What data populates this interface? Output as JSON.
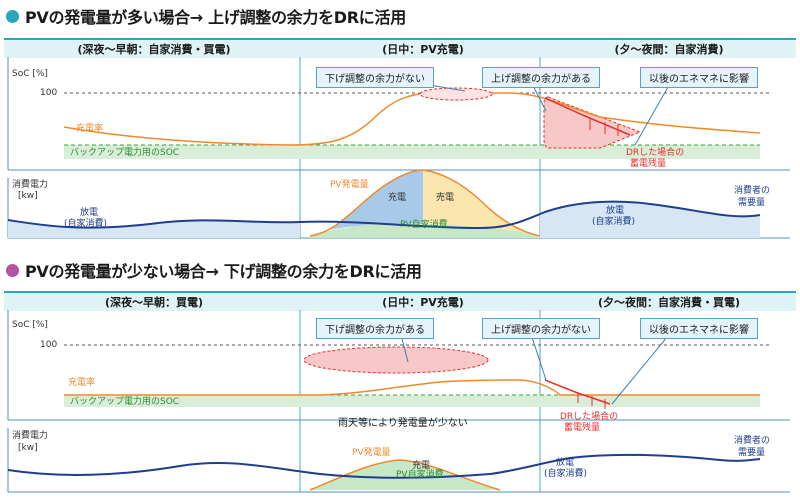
{
  "panel1": {
    "heading": "PVの発電量が多い場合→ 上げ調整の余力をDRに活用",
    "dot_color": "#2aa5b9",
    "periods": [
      "(深夜～早朝：自家消費・買電)",
      "(日中：PV充電)",
      "(夕～夜間：自家消費)"
    ],
    "soc_axis": "SoC [%]",
    "soc_100": "100",
    "callout_down": "下げ調整の余力がない",
    "callout_up": "上げ調整の余力がある",
    "callout_effect": "以後のエネマネに影響",
    "charge_rate": "充電率",
    "backup_soc": "バックアップ電力用のSOC",
    "dr_line1": "DRした場合の",
    "dr_line2": "蓄電残量",
    "power_axis_1": "消費電力",
    "power_axis_2": "[kw]",
    "pv_output": "PV発電量",
    "charge": "充電",
    "sell": "売電",
    "discharge": "放電",
    "self_consumption": "(自家消費)",
    "pv_self": "PV自家消費",
    "discharge_r": "放電",
    "self_consumption_r": "(自家消費)",
    "consumer_1": "消費者の",
    "consumer_2": "需要量"
  },
  "panel2": {
    "heading": "PVの発電量が少ない場合→ 下げ調整の余力をDRに活用",
    "dot_color": "#b2559f",
    "periods": [
      "(深夜～早朝：買電)",
      "(日中：PV充電)",
      "(夕～夜間：自家消費・買電)"
    ],
    "soc_axis": "SoC [%]",
    "soc_100": "100",
    "callout_down": "下げ調整の余力がある",
    "callout_up": "上げ調整の余力がない",
    "callout_effect": "以後のエネマネに影響",
    "charge_rate": "充電率",
    "backup_soc": "バックアップ電力用のSOC",
    "dr_line1": "DRした場合の",
    "dr_line2": "蓄電残量",
    "rain_note": "雨天等により発電量が少ない",
    "power_axis_1": "消費電力",
    "power_axis_2": "[kw]",
    "pv_output": "PV発電量",
    "charge": "充電",
    "pv_self": "PV自家消費",
    "discharge": "放電",
    "self_consumption": "(自家消費)",
    "consumer_1": "消費者の",
    "consumer_2": "需要量"
  },
  "colors": {
    "accent": "#2aa5b9",
    "orange": "#f0892c",
    "navy": "#1f3e8c",
    "green": "#3ca03c",
    "red": "#e8302a"
  }
}
